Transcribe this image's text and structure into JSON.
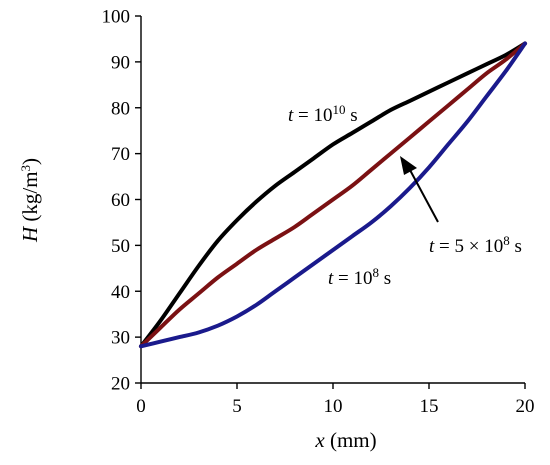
{
  "chart_data": {
    "type": "line",
    "xlabel": {
      "var": "x",
      "unit": " (mm)"
    },
    "ylabel": {
      "var": "H",
      "unit": " (kg/m",
      "sup": "3",
      "close": ")"
    },
    "xlim": [
      0,
      20
    ],
    "ylim": [
      20,
      100
    ],
    "xticks": [
      "0",
      "5",
      "10",
      "15",
      "20"
    ],
    "yticks": [
      "20",
      "30",
      "40",
      "50",
      "60",
      "70",
      "80",
      "90",
      "100"
    ],
    "grid": false,
    "legend": "none",
    "series": [
      {
        "color": "#000000",
        "x": [
          0,
          1,
          2,
          3,
          4,
          5,
          6,
          7,
          8,
          9,
          10,
          11,
          12,
          13,
          14,
          15,
          16,
          17,
          18,
          19,
          20
        ],
        "y": [
          28,
          33.5,
          39.5,
          45.5,
          51,
          55.5,
          59.5,
          63,
          66,
          69,
          72,
          74.5,
          77,
          79.5,
          81.5,
          83.5,
          85.5,
          87.5,
          89.5,
          91.5,
          94
        ]
      },
      {
        "color": "#7b1113",
        "x": [
          0,
          1,
          2,
          3,
          4,
          5,
          6,
          7,
          8,
          9,
          10,
          11,
          12,
          13,
          14,
          15,
          16,
          17,
          18,
          19,
          20
        ],
        "y": [
          28,
          32,
          36,
          39.5,
          43,
          46,
          49,
          51.5,
          54,
          57,
          60,
          63,
          66.5,
          70,
          73.5,
          77,
          80.5,
          84,
          87.5,
          90.5,
          94
        ]
      },
      {
        "color": "#1a1a8c",
        "x": [
          0,
          1,
          2,
          3,
          4,
          5,
          6,
          7,
          8,
          9,
          10,
          11,
          12,
          13,
          14,
          15,
          16,
          17,
          18,
          19,
          20
        ],
        "y": [
          28,
          29,
          30,
          31,
          32.5,
          34.5,
          37,
          40,
          43,
          46,
          49,
          52,
          55,
          58.5,
          62.5,
          67,
          72,
          77,
          82.5,
          88,
          94
        ]
      }
    ],
    "annotations": [
      {
        "pre": "t",
        "mid": " = 10",
        "sup": "10",
        "post": " s"
      },
      {
        "pre": "t",
        "mid": " = 5 × 10",
        "sup": "8",
        "post": " s"
      },
      {
        "pre": "t",
        "mid": " = 10",
        "sup": "8",
        "post": " s"
      }
    ]
  }
}
